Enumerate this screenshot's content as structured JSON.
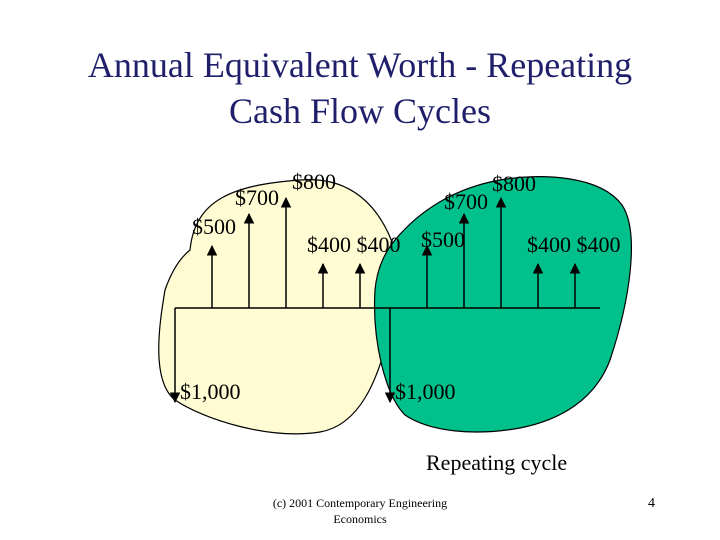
{
  "slide": {
    "title_line1": "Annual Equivalent Worth - Repeating",
    "title_line2": "Cash Flow Cycles",
    "caption": "Repeating cycle",
    "footer_line1": "(c) 2001 Contemporary Engineering",
    "footer_line2": "Economics",
    "page_number": "4"
  },
  "colors": {
    "cycle1_fill": "#fffbd3",
    "cycle2_fill": "#00c08b",
    "title_color": "#1f1f6b"
  },
  "diagram": {
    "labels": {
      "c1_outflow": "$1,000",
      "c1_y1": "$500",
      "c1_y2": "$700",
      "c1_y3": "$800",
      "c1_y45": "$400 $400",
      "c2_outflow": "$1,000",
      "c2_y1": "$500",
      "c2_y2": "$700",
      "c2_y3": "$800",
      "c2_y45": "$400 $400"
    }
  }
}
